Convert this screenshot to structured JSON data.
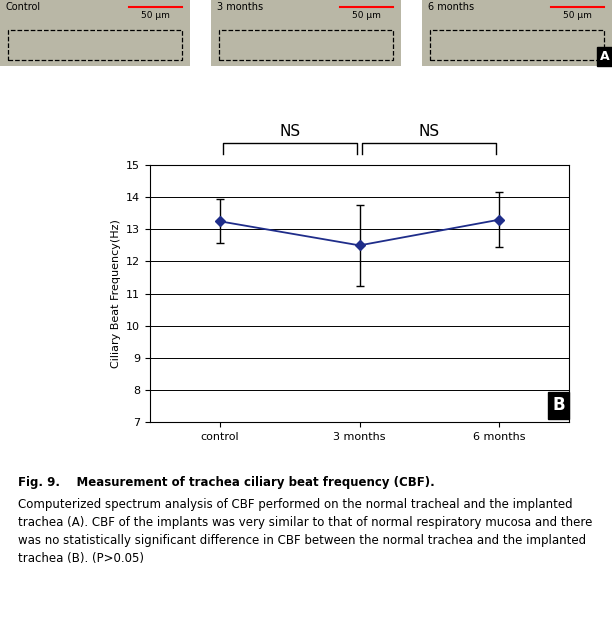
{
  "panel_a": {
    "label": "A",
    "images": [
      {
        "title": "Control",
        "scale_bar": "50 μm"
      },
      {
        "title": "3 months",
        "scale_bar": "50 μm"
      },
      {
        "title": "6 months",
        "scale_bar": "50 μm"
      }
    ]
  },
  "chart_data": {
    "type": "line",
    "panel_label": "B",
    "categories": [
      "control",
      "3 months",
      "6 months"
    ],
    "values": [
      13.25,
      12.5,
      13.3
    ],
    "errors": [
      0.68,
      1.25,
      0.85
    ],
    "color": "#1f2d8a",
    "marker": "diamond",
    "ylabel": "Ciliary Beat Frequency(Hz)",
    "ylim": [
      7,
      15
    ],
    "yticks": [
      7,
      8,
      9,
      10,
      11,
      12,
      13,
      14,
      15
    ],
    "grid": true,
    "annotations": [
      {
        "text": "NS",
        "between": [
          "control",
          "3 months"
        ]
      },
      {
        "text": "NS",
        "between": [
          "3 months",
          "6 months"
        ]
      }
    ]
  },
  "caption": {
    "heading": "Fig. 9.    Measurement of trachea ciliary beat frequency (CBF).",
    "text": "Computerized spectrum analysis of CBF performed on the normal tracheal and the implanted trachea (A). CBF of the implants was very similar to that of normal respiratory mucosa and there was no statistically significant difference in CBF between the normal trachea and the implanted trachea (B). (P>0.05)"
  }
}
